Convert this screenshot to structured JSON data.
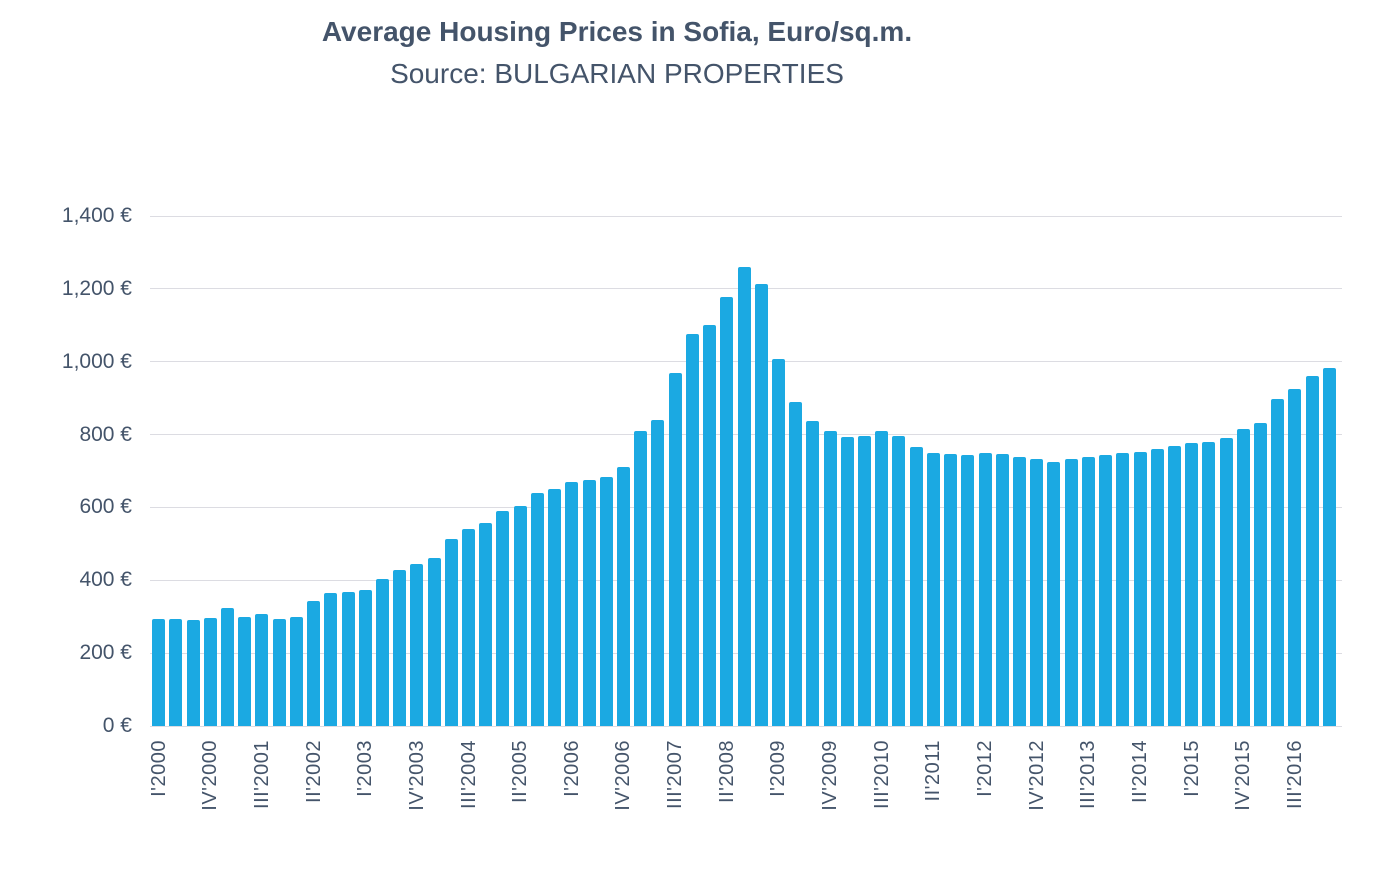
{
  "title": "Average Housing Prices in Sofia, Euro/sq.m.",
  "subtitle": "Source: BULGARIAN PROPERTIES",
  "chart_data": {
    "type": "bar",
    "title": "Average Housing Prices in Sofia, Euro/sq.m.",
    "subtitle": "Source: BULGARIAN PROPERTIES",
    "xlabel": "",
    "ylabel": "",
    "ylim": [
      0,
      1400
    ],
    "y_tick_step": 200,
    "grid": true,
    "legend": "none",
    "bar_color": "#1BA9E2",
    "text_color": "#44546A",
    "gridline_color": "#dcdce2",
    "categories": [
      "I'2000",
      "II'2000",
      "III'2000",
      "IV'2000",
      "I'2001",
      "II'2001",
      "III'2001",
      "IV'2001",
      "I'2002",
      "II'2002",
      "III'2002",
      "IV'2002",
      "I'2003",
      "II'2003",
      "III'2003",
      "IV'2003",
      "I'2004",
      "II'2004",
      "III'2004",
      "IV'2004",
      "I'2005",
      "II'2005",
      "III'2005",
      "IV'2005",
      "I'2006",
      "II'2006",
      "III'2006",
      "IV'2006",
      "I'2007",
      "II'2007",
      "III'2007",
      "IV'2007",
      "I'2008",
      "II'2008",
      "III'2008",
      "IV'2008",
      "I'2009",
      "II'2009",
      "III'2009",
      "IV'2009",
      "I'2010",
      "II'2010",
      "III'2010",
      "IV'2010",
      "I'2011",
      "II'2011",
      "III'2011",
      "IV'2011",
      "I'2012",
      "II'2012",
      "III'2012",
      "IV'2012",
      "I'2013",
      "II'2013",
      "III'2013",
      "IV'2013",
      "I'2014",
      "II'2014",
      "III'2014",
      "IV'2014",
      "I'2015",
      "II'2015",
      "III'2015",
      "IV'2015",
      "I'2016",
      "II'2016",
      "III'2016",
      "IV'2016",
      "I'2017"
    ],
    "values": [
      295,
      295,
      292,
      297,
      323,
      300,
      308,
      295,
      300,
      343,
      365,
      369,
      372,
      404,
      429,
      446,
      461,
      514,
      541,
      557,
      591,
      605,
      640,
      651,
      670,
      674,
      684,
      710,
      809,
      840,
      970,
      1076,
      1100,
      1177,
      1261,
      1213,
      1008,
      890,
      836,
      809,
      793,
      796,
      811,
      795,
      765,
      749,
      746,
      743,
      749,
      746,
      738,
      734,
      726,
      732,
      738,
      745,
      749,
      753,
      761,
      770,
      777,
      780,
      790,
      814,
      833,
      897,
      925,
      960,
      983
    ],
    "x_ticks": [
      {
        "i": 0,
        "label": "I'2000"
      },
      {
        "i": 3,
        "label": "IV'2000"
      },
      {
        "i": 6,
        "label": "III'2001"
      },
      {
        "i": 9,
        "label": "II'2002"
      },
      {
        "i": 12,
        "label": "I'2003"
      },
      {
        "i": 15,
        "label": "IV'2003"
      },
      {
        "i": 18,
        "label": "III'2004"
      },
      {
        "i": 21,
        "label": "II'2005"
      },
      {
        "i": 24,
        "label": "I'2006"
      },
      {
        "i": 27,
        "label": "IV'2006"
      },
      {
        "i": 30,
        "label": "III'2007"
      },
      {
        "i": 33,
        "label": "II'2008"
      },
      {
        "i": 36,
        "label": "I'2009"
      },
      {
        "i": 39,
        "label": "IV'2009"
      },
      {
        "i": 42,
        "label": "III'2010"
      },
      {
        "i": 45,
        "label": "II'2011"
      },
      {
        "i": 48,
        "label": "I'2012"
      },
      {
        "i": 51,
        "label": "IV'2012"
      },
      {
        "i": 54,
        "label": "III'2013"
      },
      {
        "i": 57,
        "label": "II'2014"
      },
      {
        "i": 60,
        "label": "I'2015"
      },
      {
        "i": 63,
        "label": "IV'2015"
      },
      {
        "i": 66,
        "label": "III'2016"
      }
    ],
    "y_ticks": [
      {
        "value": 0,
        "label": "0 €"
      },
      {
        "value": 200,
        "label": "200 €"
      },
      {
        "value": 400,
        "label": "400 €"
      },
      {
        "value": 600,
        "label": "600 €"
      },
      {
        "value": 800,
        "label": "800 €"
      },
      {
        "value": 1000,
        "label": "1,000 €"
      },
      {
        "value": 1200,
        "label": "1,200 €"
      },
      {
        "value": 1400,
        "label": "1,400 €"
      }
    ]
  }
}
